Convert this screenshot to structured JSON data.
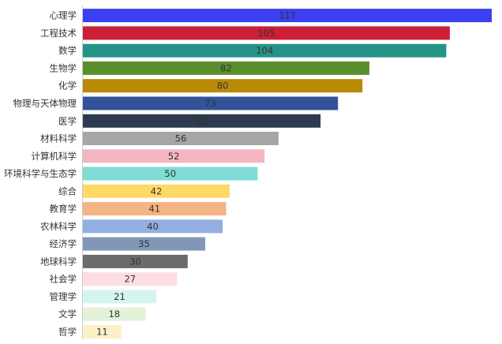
{
  "chart_data": {
    "type": "bar",
    "orientation": "horizontal",
    "categories": [
      "心理学",
      "工程技术",
      "数学",
      "生物学",
      "化学",
      "物理与天体物理",
      "医学",
      "材料科学",
      "计算机科学",
      "环境科学与生态学",
      "综合",
      "教育学",
      "农林科学",
      "经济学",
      "地球科学",
      "社会学",
      "管理学",
      "文学",
      "哲学"
    ],
    "values": [
      117,
      105,
      104,
      82,
      80,
      73,
      68,
      56,
      52,
      50,
      42,
      41,
      40,
      35,
      30,
      27,
      21,
      18,
      11
    ],
    "colors": [
      "#3a3ff0",
      "#cc1f35",
      "#259388",
      "#5a8e2c",
      "#b98a06",
      "#32539a",
      "#2d3a4f",
      "#a6a6a6",
      "#f5b6c3",
      "#7fdcd6",
      "#ffd966",
      "#f5b483",
      "#93aee0",
      "#8297b8",
      "#6d6a6a",
      "#fcdde3",
      "#d6f4ee",
      "#e4f2d9",
      "#fdf0c8"
    ],
    "title": "",
    "xlabel": "",
    "ylabel": "",
    "xlim": [
      0,
      117
    ],
    "grid": false,
    "legend": "none"
  }
}
